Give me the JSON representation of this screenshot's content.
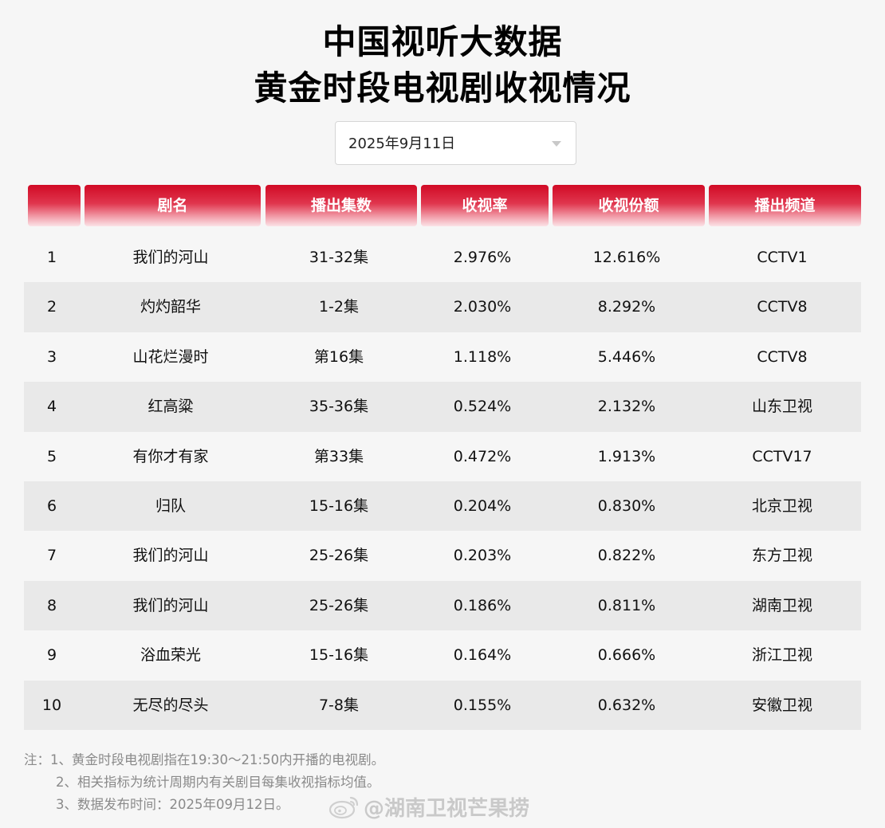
{
  "title_line1": "中国视听大数据",
  "title_line2": "黄金时段电视剧收视情况",
  "date_select": {
    "value": "2025年9月11日",
    "icon": "chevron-down-icon"
  },
  "table": {
    "headers": [
      "",
      "剧名",
      "播出集数",
      "收视率",
      "收视份额",
      "播出频道"
    ],
    "rows": [
      [
        "1",
        "我们的河山",
        "31-32集",
        "2.976%",
        "12.616%",
        "CCTV1"
      ],
      [
        "2",
        "灼灼韶华",
        "1-2集",
        "2.030%",
        "8.292%",
        "CCTV8"
      ],
      [
        "3",
        "山花烂漫时",
        "第16集",
        "1.118%",
        "5.446%",
        "CCTV8"
      ],
      [
        "4",
        "红高粱",
        "35-36集",
        "0.524%",
        "2.132%",
        "山东卫视"
      ],
      [
        "5",
        "有你才有家",
        "第33集",
        "0.472%",
        "1.913%",
        "CCTV17"
      ],
      [
        "6",
        "归队",
        "15-16集",
        "0.204%",
        "0.830%",
        "北京卫视"
      ],
      [
        "7",
        "我们的河山",
        "25-26集",
        "0.203%",
        "0.822%",
        "东方卫视"
      ],
      [
        "8",
        "我们的河山",
        "25-26集",
        "0.186%",
        "0.811%",
        "湖南卫视"
      ],
      [
        "9",
        "浴血荣光",
        "15-16集",
        "0.164%",
        "0.666%",
        "浙江卫视"
      ],
      [
        "10",
        "无尽的尽头",
        "7-8集",
        "0.155%",
        "0.632%",
        "安徽卫视"
      ]
    ]
  },
  "notes": [
    "注：1、黄金时段电视剧指在19:30～21:50内开播的电视剧。",
    "2、相关指标为统计周期内有关剧目每集收视指标均值。",
    "3、数据发布时间：2025年09月12日。"
  ],
  "watermark": {
    "icon": "weibo-icon",
    "text": "@湖南卫视芒果捞"
  },
  "colors": {
    "header_red": "#d10a25",
    "alt_row": "#e9e9e9",
    "background": "#f6f6f6"
  }
}
